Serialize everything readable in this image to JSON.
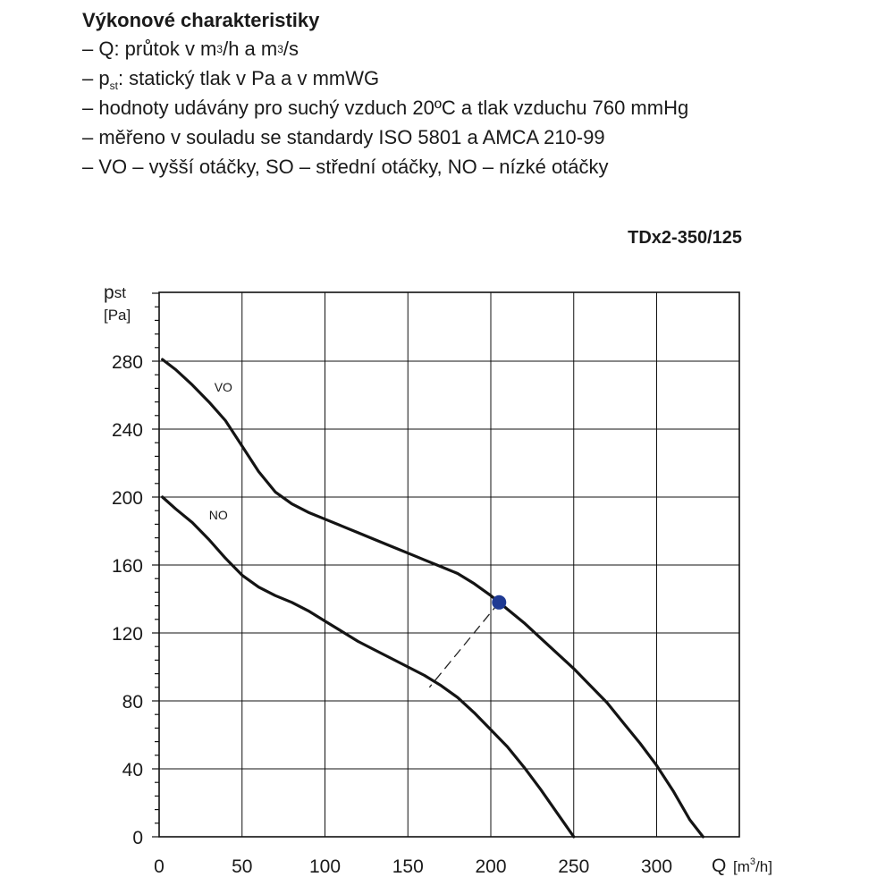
{
  "header": {
    "title": "Výkonové charakteristiky",
    "notes": {
      "q_text_a": "– Q: průtok v m",
      "q_sup_a": "3",
      "q_text_b": "/h a m",
      "q_sup_b": "3",
      "q_text_c": "/s",
      "p_text_a": "– p",
      "p_sub": "st",
      "p_text_b": ": statický tlak v Pa a v mmWG",
      "line3": "– hodnoty udávány pro suchý vzduch 20ºC a tlak vzduchu 760 mmHg",
      "line4": "– měřeno v souladu se standardy ISO 5801 a AMCA 210-99",
      "line5": "– VO – vyšší otáčky, SO – střední otáčky, NO – nízké otáčky"
    },
    "model": "TDx2-350/125"
  },
  "chart_data": {
    "type": "line",
    "title": "",
    "ylabel_main": "p",
    "ylabel_sub": "st",
    "ylabel_unit": "[Pa]",
    "xlabel": "Q",
    "xlabel_unit_a": "[m",
    "xlabel_unit_sup": "3",
    "xlabel_unit_b": "/h]",
    "xlim": [
      0,
      350
    ],
    "ylim": [
      0,
      280
    ],
    "x_ticks": [
      0,
      50,
      100,
      150,
      200,
      250,
      300
    ],
    "y_ticks": [
      0,
      40,
      80,
      120,
      160,
      200,
      240,
      280
    ],
    "grid": true,
    "series": [
      {
        "name": "VO",
        "x": [
          2,
          10,
          20,
          30,
          40,
          50,
          60,
          70,
          80,
          90,
          100,
          110,
          120,
          130,
          140,
          150,
          160,
          170,
          180,
          190,
          200,
          205,
          210,
          220,
          230,
          240,
          250,
          260,
          270,
          280,
          290,
          300,
          310,
          320,
          328
        ],
        "y": [
          281,
          275,
          266,
          256,
          245,
          230,
          215,
          203,
          196,
          191,
          187,
          183,
          179,
          175,
          171,
          167,
          163,
          159,
          155,
          149,
          142,
          138,
          134,
          126,
          117,
          108,
          99,
          89,
          79,
          67,
          55,
          42,
          27,
          10,
          0
        ]
      },
      {
        "name": "NO",
        "x": [
          2,
          10,
          20,
          30,
          40,
          50,
          60,
          70,
          80,
          90,
          100,
          110,
          120,
          130,
          140,
          150,
          160,
          170,
          180,
          190,
          200,
          210,
          220,
          230,
          240,
          250
        ],
        "y": [
          200,
          193,
          185,
          175,
          164,
          154,
          147,
          142,
          138,
          133,
          127,
          121,
          115,
          110,
          105,
          100,
          95,
          89,
          82,
          73,
          63,
          53,
          41,
          28,
          14,
          0
        ]
      }
    ],
    "operating_point": {
      "x": 205,
      "y": 138,
      "color": "#1f3a93"
    },
    "dashed_link": {
      "from": {
        "x": 205,
        "y": 138
      },
      "to": {
        "x": 163,
        "y": 88
      }
    }
  }
}
